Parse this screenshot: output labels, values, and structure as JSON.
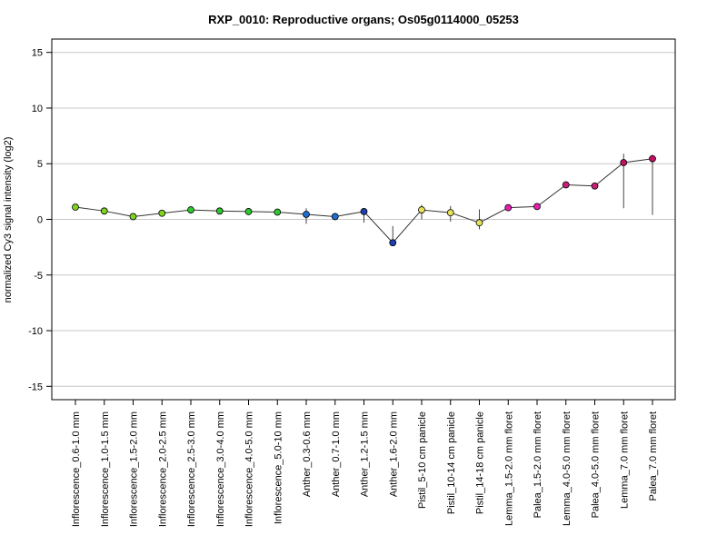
{
  "chart_data": {
    "type": "line",
    "title": "RXP_0010: Reproductive organs; Os05g0114000_05253",
    "xlabel": "",
    "ylabel": "normalized Cy3 signal intensity (log2)",
    "ylim": [
      -16.2,
      16.2
    ],
    "yticks": [
      -15,
      -10,
      -5,
      0,
      5,
      10,
      15
    ],
    "grid": true,
    "categories": [
      "Inflorescence_0.6-1.0 mm",
      "Inflorescence_1.0-1.5 mm",
      "Inflorescence_1.5-2.0 mm",
      "Inflorescence_2.0-2.5 mm",
      "Inflorescence_2.5-3.0 mm",
      "Inflorescence_3.0-4.0 mm",
      "Inflorescence_4.0-5.0 mm",
      "Inflorescence_5.0-10 mm",
      "Anther_0.3-0.6 mm",
      "Anther_0.7-1.0 mm",
      "Anther_1.2-1.5 mm",
      "Anther_1.6-2.0 mm",
      "Pistil_5-10 cm panicle",
      "Pistil_10-14 cm panicle",
      "Pistil_14-18 cm panicle",
      "Lemma_1.5-2.0 mm floret",
      "Palea_1.5-2.0 mm floret",
      "Lemma_4.0-5.0 mm floret",
      "Palea_4.0-5.0 mm floret",
      "Lemma_7.0 mm floret",
      "Palea_7.0 mm floret"
    ],
    "values": [
      1.1,
      0.75,
      0.25,
      0.55,
      0.85,
      0.75,
      0.7,
      0.65,
      0.45,
      0.25,
      0.7,
      -2.1,
      0.85,
      0.6,
      -0.3,
      1.05,
      1.15,
      3.1,
      3.0,
      5.1,
      5.45
    ],
    "error_low": [
      1.1,
      0.75,
      0.25,
      0.55,
      0.85,
      0.75,
      0.7,
      0.65,
      -0.4,
      0.25,
      -0.3,
      -2.1,
      0.0,
      -0.2,
      -0.9,
      1.05,
      1.15,
      3.1,
      3.0,
      1.0,
      0.4
    ],
    "error_high": [
      1.1,
      0.75,
      0.25,
      0.55,
      0.85,
      0.75,
      0.7,
      0.65,
      1.0,
      0.25,
      1.0,
      -0.6,
      1.3,
      1.2,
      0.9,
      1.05,
      1.15,
      3.1,
      3.0,
      5.9,
      5.8
    ],
    "point_colors": [
      "#7fd321",
      "#7fd321",
      "#7fd321",
      "#7fd321",
      "#2fc92f",
      "#2fc92f",
      "#2fc92f",
      "#2fc92f",
      "#1f6fd1",
      "#1f6fd1",
      "#1f3fb0",
      "#1f3fb0",
      "#e8e25a",
      "#e8e25a",
      "#e8e25a",
      "#e81fb0",
      "#e81fb0",
      "#c8207a",
      "#c8207a",
      "#c01060",
      "#c01060"
    ],
    "line_color": "#333333"
  }
}
